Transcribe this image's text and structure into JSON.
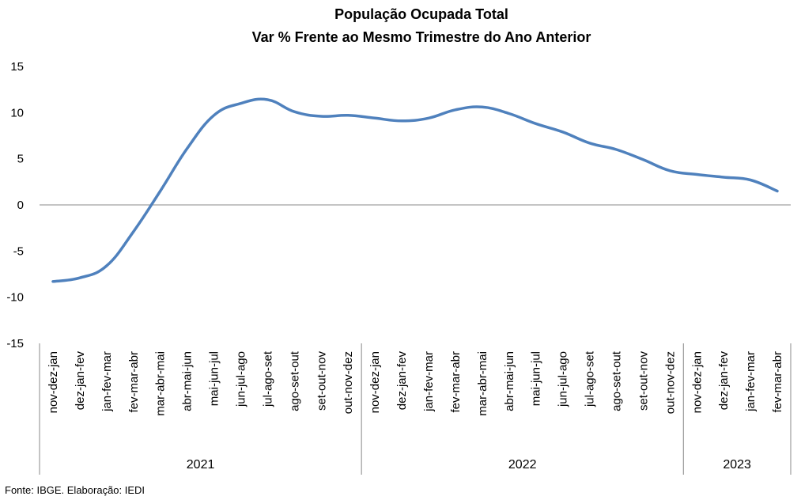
{
  "chart_data": {
    "type": "line",
    "title": "População Ocupada Total",
    "subtitle": "Var % Frente ao Mesmo Trimestre do Ano Anterior",
    "ylim": [
      -15,
      15
    ],
    "yticks": [
      15,
      10,
      5,
      0,
      -5,
      -10,
      -15
    ],
    "grid": false,
    "categories": [
      "nov-dez-jan",
      "dez-jan-fev",
      "jan-fev-mar",
      "fev-mar-abr",
      "mar-abr-mai",
      "abr-mai-jun",
      "mai-jun-jul",
      "jun-jul-ago",
      "jul-ago-set",
      "ago-set-out",
      "set-out-nov",
      "out-nov-dez",
      "nov-dez-jan",
      "dez-jan-fev",
      "jan-fev-mar",
      "fev-mar-abr",
      "mar-abr-mai",
      "abr-mai-jun",
      "mai-jun-jul",
      "jun-jul-ago",
      "jul-ago-set",
      "ago-set-out",
      "set-out-nov",
      "out-nov-dez",
      "nov-dez-jan",
      "dez-jan-fev",
      "jan-fev-mar",
      "fev-mar-abr"
    ],
    "groups": [
      {
        "label": "2021",
        "count": 12
      },
      {
        "label": "2022",
        "count": 12
      },
      {
        "label": "2023",
        "count": 4
      }
    ],
    "series": [
      {
        "color": "#4f81bd",
        "values": [
          -8.3,
          -7.9,
          -6.6,
          -2.9,
          1.5,
          6.1,
          9.7,
          11.0,
          11.4,
          10.1,
          9.6,
          9.7,
          9.4,
          9.1,
          9.4,
          10.3,
          10.6,
          9.9,
          8.8,
          7.9,
          6.7,
          6.0,
          4.9,
          3.7,
          3.3,
          3.0,
          2.7,
          1.5
        ]
      }
    ]
  },
  "source": "Fonte: IBGE. Elaboração: IEDI"
}
